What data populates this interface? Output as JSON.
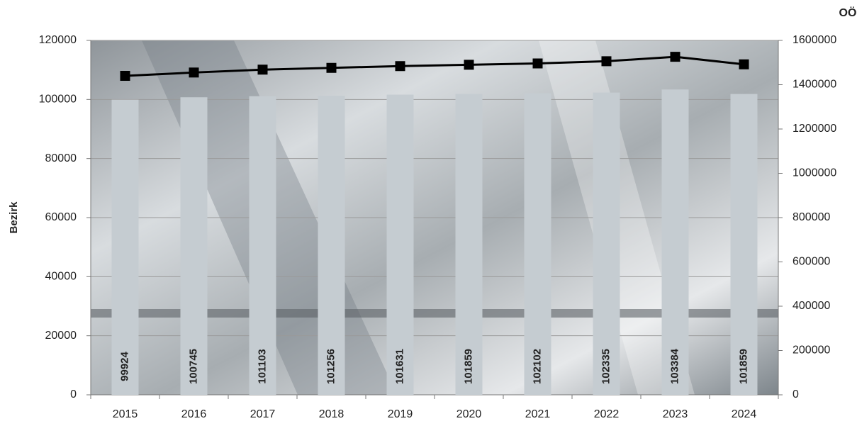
{
  "chart_data": {
    "type": "bar-line",
    "y_label": "Bezirk",
    "y2_label": "OÖ",
    "categories": [
      "2015",
      "2016",
      "2017",
      "2018",
      "2019",
      "2020",
      "2021",
      "2022",
      "2023",
      "2024"
    ],
    "series": [
      {
        "name": "Bezirk",
        "type": "bar",
        "color": "#c5ccd1",
        "values": [
          99924,
          100745,
          101103,
          101256,
          101631,
          101859,
          102102,
          102335,
          103384,
          101859
        ]
      },
      {
        "name": "OÖ",
        "type": "line",
        "axis": "y2",
        "color": "#000000",
        "values": [
          1440000,
          1455000,
          1468000,
          1476000,
          1484000,
          1490000,
          1496000,
          1506000,
          1526000,
          1492000
        ]
      }
    ],
    "ylim": [
      0,
      120000
    ],
    "yticks": [
      0,
      20000,
      40000,
      60000,
      80000,
      100000,
      120000
    ],
    "y2lim": [
      0,
      1600000
    ],
    "y2ticks": [
      0,
      200000,
      400000,
      600000,
      800000,
      1000000,
      1200000,
      1400000,
      1600000
    ],
    "grid": true
  }
}
